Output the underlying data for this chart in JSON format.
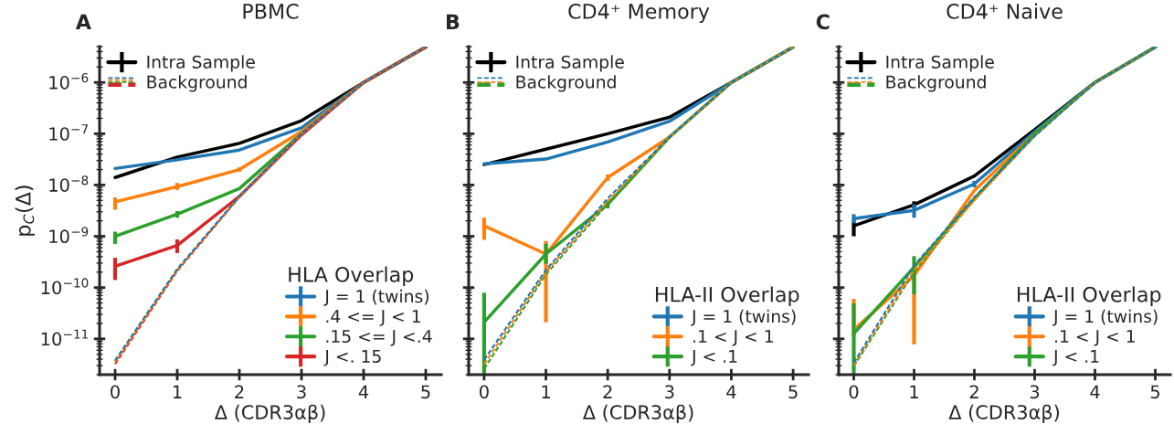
{
  "chart_data": [
    {
      "type": "line",
      "title": "PBMC",
      "xlabel": "Δ (CDR3αβ)",
      "ylabel": "p$_{C}$(Δ)",
      "legend_title": "HLA Overlap",
      "annotations": [
        "A"
      ],
      "x": [
        0,
        1,
        2,
        3,
        4,
        5
      ],
      "xlim": [
        -0.25,
        5.25
      ],
      "xticks": [
        0,
        1,
        2,
        3,
        4,
        5
      ],
      "log": "y",
      "ylim": [
        2e-12,
        5e-06
      ],
      "yticks": [
        {
          "value": 1e-11,
          "label": "10$^{−11}$"
        },
        {
          "value": 1e-10,
          "label": "10$^{−10}$"
        },
        {
          "value": 1e-09,
          "label": "10$^{−9}$"
        },
        {
          "value": 1e-08,
          "label": "10$^{−8}$"
        },
        {
          "value": 1e-07,
          "label": "10$^{−7}$"
        },
        {
          "value": 1e-06,
          "label": "10$^{−6}$"
        }
      ],
      "legend": [
        "top left",
        "bottom right"
      ],
      "grid": false,
      "marker": "none",
      "series": [
        {
          "name": "Intra Sample",
          "color": "#000000",
          "line_style": "solid",
          "values": [
            1.4e-08,
            3.5e-08,
            6.5e-08,
            1.8e-07,
            1e-06,
            4.9e-06
          ]
        },
        {
          "color": "#1f77b4",
          "line_style": "dashed",
          "values": [
            3.8e-12,
            2.3e-10,
            6e-09,
            1e-07,
            1e-06,
            4.9e-06
          ]
        },
        {
          "color": "#ff7f0e",
          "line_style": "dashed",
          "values": [
            3.5e-12,
            2.2e-10,
            5.9e-09,
            1e-07,
            1e-06,
            4.9e-06
          ]
        },
        {
          "color": "#2ca02c",
          "line_style": "dashed",
          "values": [
            3.6e-12,
            2.2e-10,
            5.9e-09,
            1e-07,
            1e-06,
            4.9e-06
          ]
        },
        {
          "name": "Background",
          "color": "#d62728",
          "line_style": "dashed",
          "values": [
            3.2e-12,
            2.1e-10,
            5.8e-09,
            9.5e-08,
            1e-06,
            4.9e-06
          ]
        },
        {
          "name": "J = 1 (twins)",
          "color": "#1f77b4",
          "line_style": "solid",
          "values": [
            2.1e-08,
            3.1e-08,
            4.8e-08,
            1.3e-07,
            1e-06,
            4.9e-06
          ]
        },
        {
          "name": ".4 <= J < 1",
          "color": "#ff7f0e",
          "line_style": "solid",
          "values": [
            4.7e-09,
            9.3e-09,
            2e-08,
            1.1e-07,
            1e-06,
            4.9e-06
          ],
          "errors": [
            [
              3.3e-09,
              5.7e-09
            ],
            [
              8e-09,
              1.1e-08
            ],
            [
              1.8e-08,
              2.2e-08
            ],
            null,
            null,
            null
          ]
        },
        {
          "name": ".15 <= J <.4",
          "color": "#2ca02c",
          "line_style": "solid",
          "values": [
            1e-09,
            2.7e-09,
            8.5e-09,
            1e-07,
            1e-06,
            4.9e-06
          ],
          "errors": [
            [
              7.1e-10,
              1.23e-09
            ],
            [
              2.3e-09,
              3.1e-09
            ],
            null,
            null,
            null,
            null
          ]
        },
        {
          "name": "J <. 15",
          "color": "#d62728",
          "line_style": "solid",
          "values": [
            2.6e-10,
            6.6e-10,
            6e-09,
            9.5e-08,
            1e-06,
            4.9e-06
          ],
          "errors": [
            [
              1.4e-10,
              3.8e-10
            ],
            [
              4.7e-10,
              8.7e-10
            ],
            null,
            null,
            null,
            null
          ]
        }
      ]
    },
    {
      "type": "line",
      "title": "CD4⁺ Memory",
      "xlabel": "Δ (CDR3αβ)",
      "legend_title": "HLA-II Overlap",
      "annotations": [
        "B"
      ],
      "x": [
        0,
        1,
        2,
        3,
        4,
        5
      ],
      "xlim": [
        -0.25,
        5.25
      ],
      "xticks": [
        0,
        1,
        2,
        3,
        4,
        5
      ],
      "log": "y",
      "ylim": [
        2e-12,
        5e-06
      ],
      "yticks": [
        1e-11,
        1e-10,
        1e-09,
        1e-08,
        1e-07,
        1e-06
      ],
      "tick_labels": "x",
      "legend": [
        "top left",
        "bottom right"
      ],
      "grid": false,
      "marker": "none",
      "series": [
        {
          "name": "Intra Sample",
          "color": "#000000",
          "line_style": "solid",
          "values": [
            2.5e-08,
            5e-08,
            1e-07,
            2.1e-07,
            1e-06,
            4.9e-06
          ]
        },
        {
          "color": "#1f77b4",
          "line_style": "dashed",
          "values": [
            3.9e-12,
            2.2e-10,
            5.5e-09,
            8.6e-08,
            1e-06,
            4.9e-06
          ]
        },
        {
          "color": "#ff7f0e",
          "line_style": "dashed",
          "values": [
            3.2e-12,
            2e-10,
            4.8e-09,
            8.6e-08,
            1e-06,
            4.9e-06
          ]
        },
        {
          "name": "Background",
          "color": "#2ca02c",
          "line_style": "dashed",
          "values": [
            2.6e-12,
            1.8e-10,
            4.3e-09,
            8.6e-08,
            1e-06,
            4.9e-06
          ]
        },
        {
          "name": "J = 1 (twins)",
          "color": "#1f77b4",
          "line_style": "solid",
          "values": [
            2.6e-08,
            3.2e-08,
            6.9e-08,
            1.75e-07,
            1e-06,
            4.9e-06
          ]
        },
        {
          "name": ".1 < J < 1",
          "color": "#ff7f0e",
          "line_style": "solid",
          "values": [
            1.6e-09,
            4.5e-10,
            1.4e-08,
            8.6e-08,
            1e-06,
            4.9e-06
          ],
          "errors": [
            [
              8.5e-10,
              2.3e-09
            ],
            [
              2.1e-11,
              8.1e-10
            ],
            [
              1.2e-08,
              1.6e-08
            ],
            null,
            null,
            null
          ]
        },
        {
          "name": "J < .1",
          "color": "#2ca02c",
          "line_style": "solid",
          "values": [
            2.1e-11,
            4.5e-10,
            4.2e-09,
            8.6e-08,
            1e-06,
            4.9e-06
          ],
          "errors": [
            [
              2.1e-12,
              7.9e-11
            ],
            [
              2.9e-10,
              7.1e-10
            ],
            [
              3.5e-09,
              5e-09
            ],
            null,
            null,
            null
          ]
        }
      ]
    },
    {
      "type": "line",
      "title": "CD4⁺ Naive",
      "xlabel": "Δ (CDR3αβ)",
      "legend_title": "HLA-II Overlap",
      "annotations": [
        "C"
      ],
      "x": [
        0,
        1,
        2,
        3,
        4,
        5
      ],
      "xlim": [
        -0.25,
        5.25
      ],
      "xticks": [
        0,
        1,
        2,
        3,
        4,
        5
      ],
      "log": "y",
      "ylim": [
        2e-12,
        5e-06
      ],
      "yticks": [
        1e-11,
        1e-10,
        1e-09,
        1e-08,
        1e-07,
        1e-06
      ],
      "tick_labels": "x",
      "legend": [
        "top left",
        "bottom right"
      ],
      "grid": false,
      "marker": "none",
      "series": [
        {
          "name": "Intra Sample",
          "color": "#000000",
          "line_style": "solid",
          "values": [
            1.6e-09,
            4.1e-09,
            1.5e-08,
            1.2e-07,
            1e-06,
            4.9e-06
          ],
          "errors": [
            [
              1e-09,
              2e-09
            ],
            [
              3.5e-09,
              4.8e-09
            ],
            null,
            null,
            null,
            null
          ]
        },
        {
          "color": "#1f77b4",
          "line_style": "dashed",
          "values": [
            3.4e-12,
            2.7e-10,
            5.8e-09,
            9e-08,
            1e-06,
            4.9e-06
          ]
        },
        {
          "color": "#ff7f0e",
          "line_style": "dashed",
          "values": [
            3.1e-12,
            2.2e-10,
            5e-09,
            9e-08,
            1e-06,
            4.9e-06
          ]
        },
        {
          "name": "Background",
          "color": "#2ca02c",
          "line_style": "dashed",
          "values": [
            2.9e-12,
            2e-10,
            5.2e-09,
            9e-08,
            1e-06,
            4.9e-06
          ]
        },
        {
          "name": "J = 1 (twins)",
          "color": "#1f77b4",
          "line_style": "solid",
          "values": [
            2.2e-09,
            3.2e-09,
            1.05e-08,
            1.1e-07,
            1e-06,
            4.9e-06
          ],
          "errors": [
            [
              1.8e-09,
              2.7e-09
            ],
            [
              2.3e-09,
              4.2e-09
            ],
            [
              9e-09,
              1.2e-08
            ],
            null,
            null,
            null
          ]
        },
        {
          "name": ".1 < J < 1",
          "color": "#ff7f0e",
          "line_style": "solid",
          "values": [
            1.5e-11,
            1.7e-10,
            7.8e-09,
            1e-07,
            1e-06,
            4.9e-06
          ],
          "errors": [
            [
              1.1e-11,
              6e-11
            ],
            [
              7.8e-12,
              2.5e-10
            ],
            null,
            null,
            null,
            null
          ]
        },
        {
          "name": "J < .1",
          "color": "#2ca02c",
          "line_style": "solid",
          "values": [
            1.26e-11,
            2.5e-10,
            5.4e-09,
            1e-07,
            1e-06,
            4.9e-06
          ],
          "errors": [
            [
              2.1e-12,
              4.9e-11
            ],
            [
              7.4e-11,
              4.1e-10
            ],
            null,
            null,
            null,
            null
          ]
        }
      ]
    }
  ]
}
